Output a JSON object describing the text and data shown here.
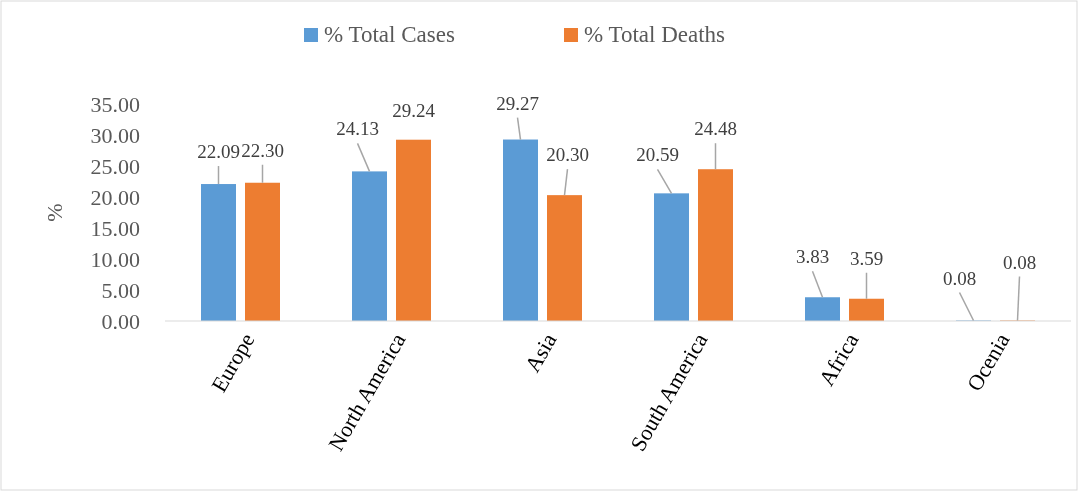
{
  "chart_data": {
    "type": "bar",
    "ylabel": "%",
    "categories": [
      "Europe",
      "North America",
      "Asia",
      "South America",
      "Africa",
      "Ocenia"
    ],
    "series": [
      {
        "name": "% Total Cases",
        "color": "#5b9bd5",
        "values": [
          22.09,
          24.13,
          29.27,
          20.59,
          3.83,
          0.08
        ],
        "value_labels": [
          "22.09",
          "24.13",
          "29.27",
          "20.59",
          "3.83",
          "0.08"
        ]
      },
      {
        "name": "% Total Deaths",
        "color": "#ed7d31",
        "values": [
          22.3,
          29.24,
          20.3,
          24.48,
          3.59,
          0.08
        ],
        "value_labels": [
          "22.30",
          "29.24",
          "20.30",
          "24.48",
          "3.59",
          "0.08"
        ]
      }
    ],
    "ylim": [
      0,
      35
    ],
    "yticks": [
      {
        "value": 0,
        "label": "0.00"
      },
      {
        "value": 5,
        "label": "5.00"
      },
      {
        "value": 10,
        "label": "10.00"
      },
      {
        "value": 15,
        "label": "15.00"
      },
      {
        "value": 20,
        "label": "20.00"
      },
      {
        "value": 25,
        "label": "25.00"
      },
      {
        "value": 30,
        "label": "30.00"
      },
      {
        "value": 35,
        "label": "35.00"
      }
    ],
    "grid": false,
    "legend": "top"
  }
}
